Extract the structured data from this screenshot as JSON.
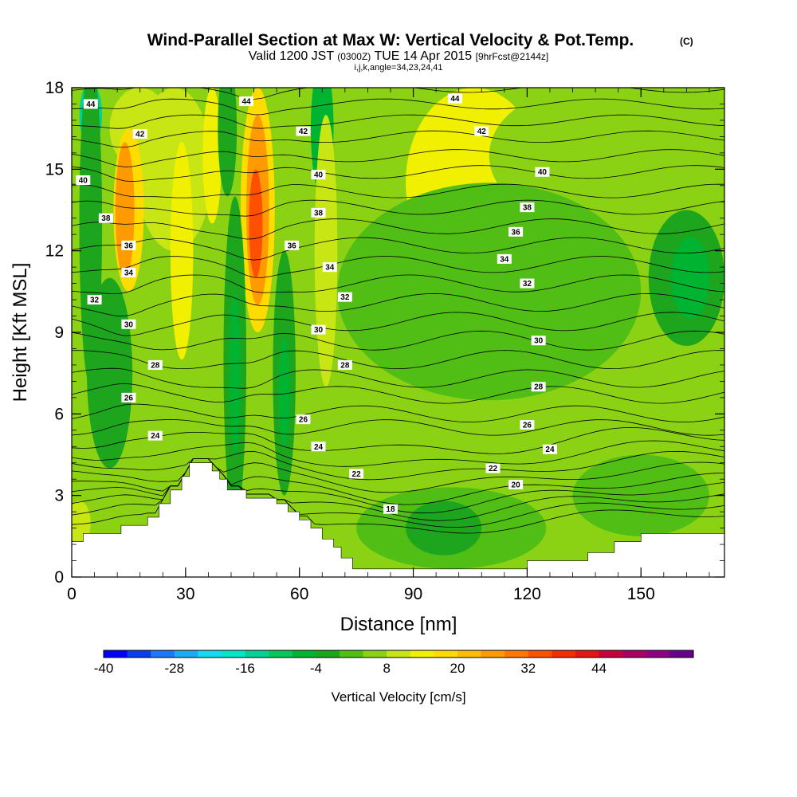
{
  "header": {
    "title": "Wind-Parallel Section at Max W: Vertical Velocity & Pot.Temp.",
    "title_suffix": "(C)",
    "valid_prefix": "Valid 1200 JST",
    "valid_utc": "(0300Z)",
    "valid_date": "TUE 14 Apr 2015",
    "forecast_note": "[9hrFcst@2144z]",
    "indices": "i,j,k,angle=34,23,24,41"
  },
  "chart_data": {
    "type": "heatmap",
    "xlabel": "Distance [nm]",
    "ylabel": "Height [Kft MSL]",
    "xlim": [
      0,
      172
    ],
    "ylim": [
      0,
      18
    ],
    "xticks": [
      "0",
      "30",
      "60",
      "90",
      "120",
      "150"
    ],
    "xtick_values": [
      0,
      30,
      60,
      90,
      120,
      150
    ],
    "yticks": [
      "0",
      "3",
      "6",
      "9",
      "12",
      "15",
      "18"
    ],
    "ytick_values": [
      0,
      3,
      6,
      9,
      12,
      15,
      18
    ],
    "colorbar": {
      "label": "Vertical Velocity [cm/s]",
      "min": -40,
      "step": 4,
      "colors": [
        "#0000ff",
        "#0a3cf0",
        "#1e78f5",
        "#1eaaf0",
        "#14dcf0",
        "#00e6c8",
        "#00d296",
        "#00c85a",
        "#00b432",
        "#1ea51e",
        "#50be14",
        "#8cd214",
        "#c8e614",
        "#f0f000",
        "#ffdc00",
        "#ffbe00",
        "#ff9b00",
        "#ff7800",
        "#ff5000",
        "#f52d00",
        "#e61414",
        "#c8003c",
        "#aa0064",
        "#8c0082",
        "#64008c"
      ],
      "ticks": [
        "-40",
        "-28",
        "-16",
        "-4",
        "8",
        "20",
        "32",
        "44"
      ],
      "tick_values": [
        -40,
        -28,
        -16,
        -4,
        8,
        20,
        32,
        44
      ]
    },
    "terrain": [
      [
        0,
        1.3
      ],
      [
        3,
        1.3
      ],
      [
        3,
        1.6
      ],
      [
        13,
        1.6
      ],
      [
        13,
        1.9
      ],
      [
        20,
        1.9
      ],
      [
        20,
        2.2
      ],
      [
        23,
        2.2
      ],
      [
        23,
        2.7
      ],
      [
        26,
        2.7
      ],
      [
        26,
        3.2
      ],
      [
        29,
        3.2
      ],
      [
        29,
        3.7
      ],
      [
        31,
        3.7
      ],
      [
        31,
        4.2
      ],
      [
        37,
        4.2
      ],
      [
        37,
        3.9
      ],
      [
        39,
        3.9
      ],
      [
        39,
        3.6
      ],
      [
        41,
        3.6
      ],
      [
        41,
        3.2
      ],
      [
        46,
        3.2
      ],
      [
        46,
        2.9
      ],
      [
        54,
        2.9
      ],
      [
        54,
        2.7
      ],
      [
        57,
        2.7
      ],
      [
        57,
        2.4
      ],
      [
        60,
        2.4
      ],
      [
        60,
        2.1
      ],
      [
        63,
        2.1
      ],
      [
        63,
        1.8
      ],
      [
        66,
        1.8
      ],
      [
        66,
        1.4
      ],
      [
        69,
        1.4
      ],
      [
        69,
        1.1
      ],
      [
        71,
        1.1
      ],
      [
        71,
        0.7
      ],
      [
        74,
        0.7
      ],
      [
        74,
        0.3
      ],
      [
        120,
        0.3
      ],
      [
        120,
        0.6
      ],
      [
        136,
        0.6
      ],
      [
        136,
        0.9
      ],
      [
        143,
        0.9
      ],
      [
        143,
        1.3
      ],
      [
        150,
        1.3
      ],
      [
        150,
        1.6
      ],
      [
        172,
        1.6
      ]
    ],
    "w_field": {
      "background": 4,
      "regions": [
        {
          "value": 12,
          "x": 106,
          "y": 14.5,
          "rx": 18,
          "ry": 3.5
        },
        {
          "value": 6,
          "x": 135,
          "y": 15.5,
          "rx": 25,
          "ry": 2.5
        },
        {
          "value": 8,
          "x": 27,
          "y": 15.0,
          "rx": 10,
          "ry": 3.0
        },
        {
          "value": 8,
          "x": 18,
          "y": 16.5,
          "rx": 8,
          "ry": 1.5
        },
        {
          "value": 16,
          "x": 15,
          "y": 13.5,
          "rx": 4,
          "ry": 3.0
        },
        {
          "value": 24,
          "x": 14,
          "y": 13.5,
          "rx": 2.5,
          "ry": 2.5
        },
        {
          "value": 12,
          "x": 37,
          "y": 15.5,
          "rx": 2.5,
          "ry": 2.5
        },
        {
          "value": 16,
          "x": 49,
          "y": 13.5,
          "rx": 4.5,
          "ry": 4.5
        },
        {
          "value": 24,
          "x": 49,
          "y": 13.5,
          "rx": 3.0,
          "ry": 3.5
        },
        {
          "value": 32,
          "x": 48.5,
          "y": 13.0,
          "rx": 1.8,
          "ry": 2.0
        },
        {
          "value": -16,
          "x": 5,
          "y": 17.0,
          "rx": 3.0,
          "ry": 1.2
        },
        {
          "value": -12,
          "x": 5,
          "y": 15.0,
          "rx": 2.0,
          "ry": 3.0
        },
        {
          "value": -4,
          "x": 5,
          "y": 13.0,
          "rx": 3.0,
          "ry": 6.0
        },
        {
          "value": -4,
          "x": 10,
          "y": 7.5,
          "rx": 6.0,
          "ry": 3.5
        },
        {
          "value": -4,
          "x": 43,
          "y": 8.0,
          "rx": 3.0,
          "ry": 6.0
        },
        {
          "value": -8,
          "x": 43,
          "y": 7.5,
          "rx": 1.5,
          "ry": 3.0
        },
        {
          "value": -4,
          "x": 56,
          "y": 7.5,
          "rx": 3.0,
          "ry": 4.5
        },
        {
          "value": -8,
          "x": 56,
          "y": 6.8,
          "rx": 1.5,
          "ry": 2.0
        },
        {
          "value": -8,
          "x": 66,
          "y": 16.5,
          "rx": 3.0,
          "ry": 2.5
        },
        {
          "value": -4,
          "x": 41,
          "y": 16.5,
          "rx": 2.5,
          "ry": 2.5
        },
        {
          "value": -4,
          "x": 100,
          "y": 9.5,
          "rx": 12.0,
          "ry": 2.5
        },
        {
          "value": -4,
          "x": 162,
          "y": 11.0,
          "rx": 10.0,
          "ry": 2.5
        },
        {
          "value": -8,
          "x": 163,
          "y": 11.0,
          "rx": 5.0,
          "ry": 1.5
        },
        {
          "value": 0,
          "x": 110,
          "y": 10.5,
          "rx": 40.0,
          "ry": 4.0
        },
        {
          "value": 0,
          "x": 100,
          "y": 1.8,
          "rx": 25.0,
          "ry": 1.5
        },
        {
          "value": -4,
          "x": 98,
          "y": 1.8,
          "rx": 10.0,
          "ry": 1.0
        },
        {
          "value": 0,
          "x": 150,
          "y": 3.0,
          "rx": 18.0,
          "ry": 1.5
        },
        {
          "value": 8,
          "x": 67,
          "y": 12.0,
          "rx": 3.0,
          "ry": 5.0
        },
        {
          "value": 12,
          "x": 29,
          "y": 12.0,
          "rx": 3.0,
          "ry": 4.0
        },
        {
          "value": 8,
          "x": 2,
          "y": 2.0,
          "rx": 3.0,
          "ry": 0.8
        }
      ]
    },
    "theta_contours": {
      "levels": [
        16,
        17,
        18,
        19,
        20,
        21,
        22,
        23,
        24,
        25,
        26,
        27,
        28,
        29,
        30,
        31,
        32,
        33,
        34,
        35,
        36,
        37,
        38,
        39,
        40,
        41,
        42,
        43,
        44
      ],
      "base_height": [
        2.1,
        2.4,
        2.7,
        3.0,
        3.3,
        3.7,
        4.1,
        4.5,
        5.0,
        5.5,
        6.0,
        6.7,
        7.3,
        8.0,
        8.7,
        9.4,
        10.1,
        10.8,
        11.5,
        12.2,
        12.9,
        13.6,
        14.2,
        14.9,
        15.5,
        16.2,
        16.8,
        17.4,
        18.0
      ],
      "labels": [
        {
          "text": "44",
          "x": 5,
          "y": 17.4
        },
        {
          "text": "44",
          "x": 46,
          "y": 17.5
        },
        {
          "text": "44",
          "x": 101,
          "y": 17.6
        },
        {
          "text": "42",
          "x": 18,
          "y": 16.3
        },
        {
          "text": "42",
          "x": 61,
          "y": 16.4
        },
        {
          "text": "42",
          "x": 108,
          "y": 16.4
        },
        {
          "text": "40",
          "x": 3,
          "y": 14.6
        },
        {
          "text": "40",
          "x": 65,
          "y": 14.8
        },
        {
          "text": "40",
          "x": 124,
          "y": 14.9
        },
        {
          "text": "38",
          "x": 9,
          "y": 13.2
        },
        {
          "text": "38",
          "x": 65,
          "y": 13.4
        },
        {
          "text": "38",
          "x": 120,
          "y": 13.6
        },
        {
          "text": "36",
          "x": 15,
          "y": 12.2
        },
        {
          "text": "36",
          "x": 58,
          "y": 12.2
        },
        {
          "text": "36",
          "x": 117,
          "y": 12.7
        },
        {
          "text": "34",
          "x": 15,
          "y": 11.2
        },
        {
          "text": "34",
          "x": 68,
          "y": 11.4
        },
        {
          "text": "34",
          "x": 114,
          "y": 11.7
        },
        {
          "text": "32",
          "x": 6,
          "y": 10.2
        },
        {
          "text": "32",
          "x": 72,
          "y": 10.3
        },
        {
          "text": "32",
          "x": 120,
          "y": 10.8
        },
        {
          "text": "30",
          "x": 15,
          "y": 9.3
        },
        {
          "text": "30",
          "x": 65,
          "y": 9.1
        },
        {
          "text": "30",
          "x": 123,
          "y": 8.7
        },
        {
          "text": "28",
          "x": 22,
          "y": 7.8
        },
        {
          "text": "28",
          "x": 72,
          "y": 7.8
        },
        {
          "text": "28",
          "x": 123,
          "y": 7.0
        },
        {
          "text": "26",
          "x": 15,
          "y": 6.6
        },
        {
          "text": "26",
          "x": 61,
          "y": 5.8
        },
        {
          "text": "26",
          "x": 120,
          "y": 5.6
        },
        {
          "text": "24",
          "x": 22,
          "y": 5.2
        },
        {
          "text": "24",
          "x": 65,
          "y": 4.8
        },
        {
          "text": "24",
          "x": 126,
          "y": 4.7
        },
        {
          "text": "22",
          "x": 75,
          "y": 3.8
        },
        {
          "text": "22",
          "x": 111,
          "y": 4.0
        },
        {
          "text": "20",
          "x": 117,
          "y": 3.4
        },
        {
          "text": "18",
          "x": 84,
          "y": 2.5
        }
      ]
    }
  }
}
